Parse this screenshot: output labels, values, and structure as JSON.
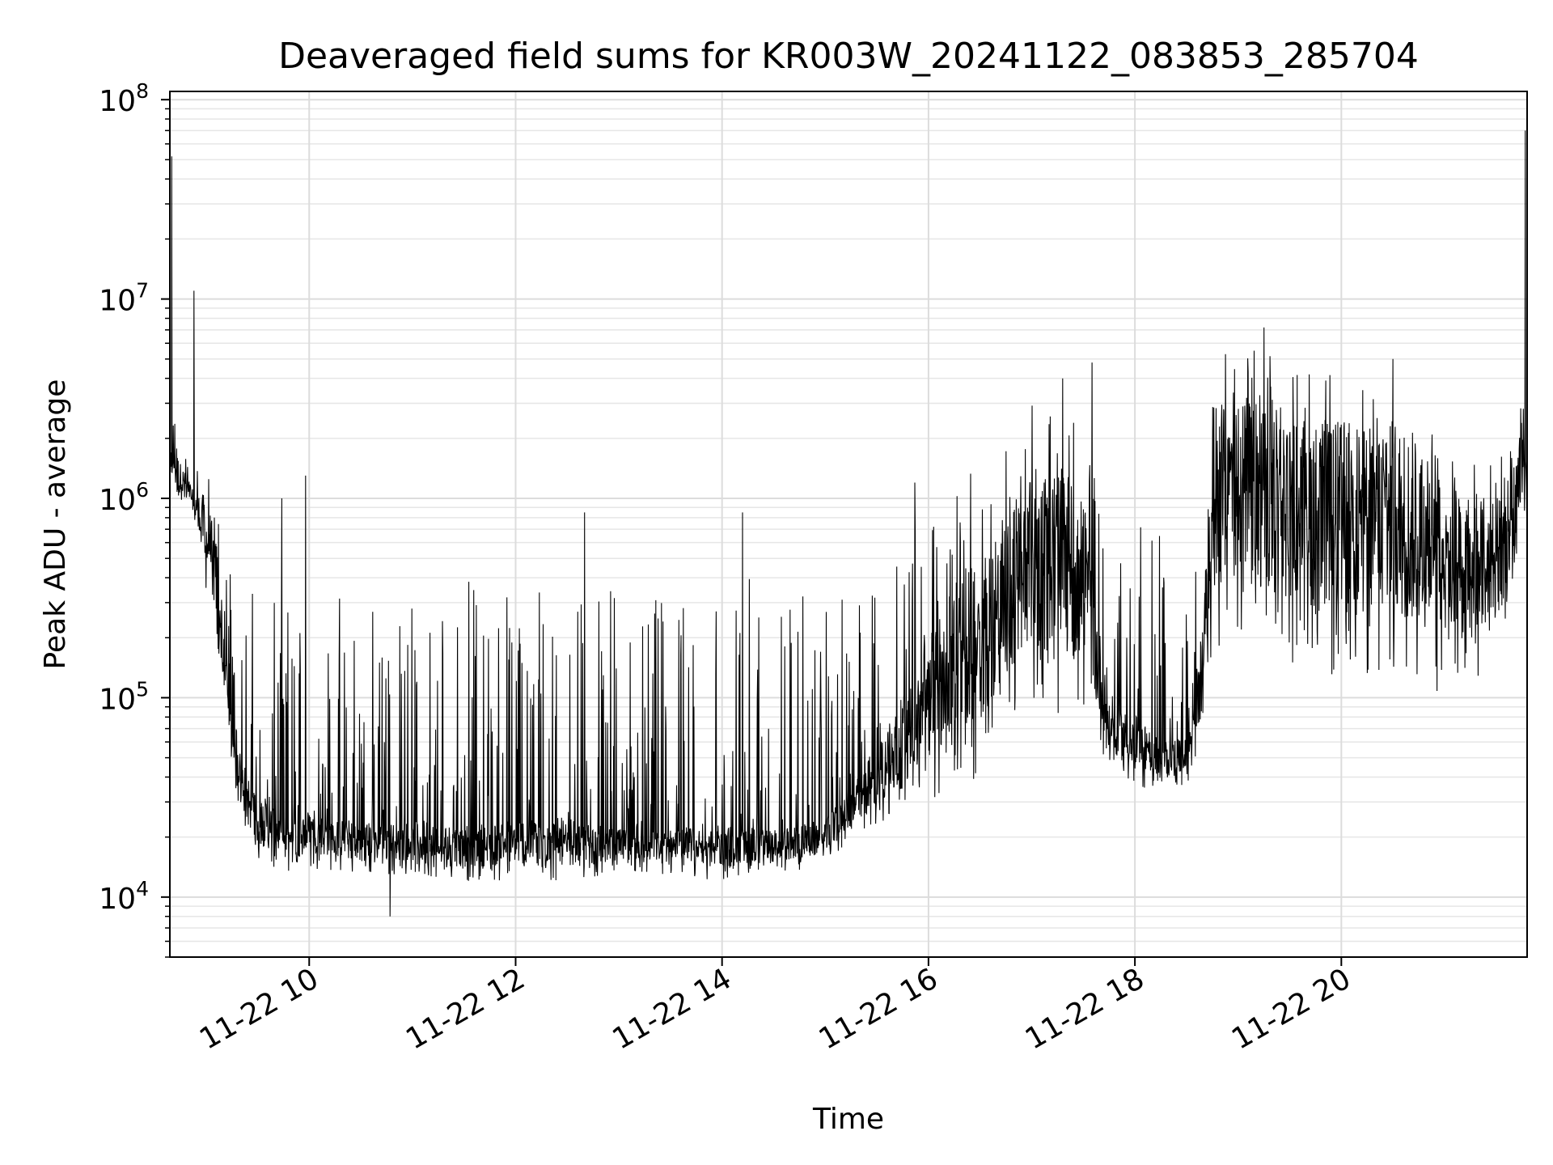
{
  "chart_data": {
    "type": "line",
    "title": "Deaveraged field sums for KR003W_20241122_083853_285704",
    "xlabel": "Time",
    "ylabel": "Peak ADU - average",
    "y_scale": "log",
    "ylim": [
      5000,
      110000000
    ],
    "xlim": [
      "2024-11-22 08:39",
      "2024-11-22 21:48"
    ],
    "grid": true,
    "x_ticks": [
      {
        "value": "2024-11-22 10:00",
        "label": "11-22 10"
      },
      {
        "value": "2024-11-22 12:00",
        "label": "11-22 12"
      },
      {
        "value": "2024-11-22 14:00",
        "label": "11-22 14"
      },
      {
        "value": "2024-11-22 16:00",
        "label": "11-22 16"
      },
      {
        "value": "2024-11-22 18:00",
        "label": "11-22 18"
      },
      {
        "value": "2024-11-22 20:00",
        "label": "11-22 20"
      }
    ],
    "y_ticks": [
      {
        "value": 10000,
        "base": "10",
        "exp": "4"
      },
      {
        "value": 100000,
        "base": "10",
        "exp": "5"
      },
      {
        "value": 1000000,
        "base": "10",
        "exp": "6"
      },
      {
        "value": 10000000,
        "base": "10",
        "exp": "7"
      },
      {
        "value": 100000000,
        "base": "10",
        "exp": "8"
      }
    ],
    "series_color": "#000000",
    "series": [
      {
        "x": [
          "2024-11-22 08:39",
          "2024-11-22 08:41",
          "2024-11-22 08:43",
          "2024-11-22 08:45",
          "2024-11-22 08:50",
          "2024-11-22 08:55",
          "2024-11-22 09:00",
          "2024-11-22 09:06",
          "2024-11-22 09:10",
          "2024-11-22 09:15",
          "2024-11-22 09:20",
          "2024-11-22 09:25",
          "2024-11-22 09:30",
          "2024-11-22 09:40",
          "2024-11-22 09:50",
          "2024-11-22 10:00",
          "2024-11-22 10:30",
          "2024-11-22 11:00",
          "2024-11-22 11:30",
          "2024-11-22 12:00",
          "2024-11-22 12:30",
          "2024-11-22 13:00",
          "2024-11-22 13:30",
          "2024-11-22 14:00",
          "2024-11-22 14:30",
          "2024-11-22 15:00",
          "2024-11-22 15:15",
          "2024-11-22 15:30",
          "2024-11-22 15:45",
          "2024-11-22 16:00",
          "2024-11-22 16:15",
          "2024-11-22 16:30",
          "2024-11-22 16:45",
          "2024-11-22 17:00",
          "2024-11-22 17:15",
          "2024-11-22 17:30",
          "2024-11-22 17:45",
          "2024-11-22 18:00",
          "2024-11-22 18:15",
          "2024-11-22 18:30",
          "2024-11-22 18:40",
          "2024-11-22 18:45",
          "2024-11-22 19:00",
          "2024-11-22 19:30",
          "2024-11-22 20:00",
          "2024-11-22 20:30",
          "2024-11-22 21:00",
          "2024-11-22 21:20",
          "2024-11-22 21:30",
          "2024-11-22 21:40",
          "2024-11-22 21:45",
          "2024-11-22 21:46",
          "2024-11-22 21:47",
          "2024-11-22 21:48"
        ],
        "low": [
          1000000,
          1500000,
          1000000,
          1000000,
          900000,
          700000,
          350000,
          180000,
          90000,
          45000,
          25000,
          18000,
          15000,
          14000,
          13000,
          14000,
          13000,
          13000,
          12000,
          12000,
          12000,
          13000,
          13000,
          12000,
          13000,
          14000,
          20000,
          20000,
          25000,
          30000,
          35000,
          40000,
          70000,
          90000,
          80000,
          85000,
          45000,
          35000,
          35000,
          35000,
          60000,
          150000,
          200000,
          150000,
          120000,
          120000,
          100000,
          120000,
          200000,
          150000,
          1000000,
          800000,
          700000,
          600000
        ],
        "high": [
          50000000,
          2500000,
          2800000,
          2000000,
          2200000,
          1800000,
          1500000,
          1000000,
          900000,
          700000,
          500000,
          400000,
          350000,
          300000,
          400000,
          400000,
          350000,
          300000,
          400000,
          400000,
          400000,
          350000,
          350000,
          400000,
          400000,
          350000,
          300000,
          400000,
          700000,
          900000,
          1200000,
          1500000,
          2000000,
          3000000,
          3000000,
          2500000,
          2000000,
          1200000,
          800000,
          500000,
          1000000,
          5000000,
          6000000,
          5000000,
          4000000,
          3000000,
          2000000,
          1500000,
          1500000,
          2000000,
          3000000,
          70000000,
          3000000,
          2500000
        ],
        "typical": [
          1500000,
          1500000,
          1400000,
          1300000,
          1100000,
          900000,
          700000,
          400000,
          200000,
          80000,
          40000,
          30000,
          25000,
          22000,
          20000,
          21000,
          19000,
          19000,
          18000,
          19000,
          19000,
          18000,
          18000,
          18000,
          18000,
          20000,
          28000,
          40000,
          60000,
          100000,
          150000,
          200000,
          300000,
          500000,
          500000,
          400000,
          70000,
          60000,
          50000,
          50000,
          150000,
          1000000,
          1200000,
          900000,
          800000,
          800000,
          600000,
          500000,
          500000,
          800000,
          2000000,
          2000000,
          1500000,
          1000000
        ],
        "spikes": [
          {
            "x": "2024-11-22 08:40",
            "y": 52000000
          },
          {
            "x": "2024-11-22 08:53",
            "y": 11000000
          },
          {
            "x": "2024-11-22 09:44",
            "y": 1000000
          },
          {
            "x": "2024-11-22 09:58",
            "y": 1300000
          },
          {
            "x": "2024-11-22 10:47",
            "y": 8000
          },
          {
            "x": "2024-11-22 12:40",
            "y": 850000
          },
          {
            "x": "2024-11-22 14:12",
            "y": 850000
          },
          {
            "x": "2024-11-22 15:52",
            "y": 1200000
          },
          {
            "x": "2024-11-22 17:18",
            "y": 4000000
          },
          {
            "x": "2024-11-22 17:35",
            "y": 4800000
          },
          {
            "x": "2024-11-22 19:15",
            "y": 7200000
          },
          {
            "x": "2024-11-22 20:30",
            "y": 5000000
          },
          {
            "x": "2024-11-22 21:47",
            "y": 70000000
          }
        ]
      }
    ]
  }
}
